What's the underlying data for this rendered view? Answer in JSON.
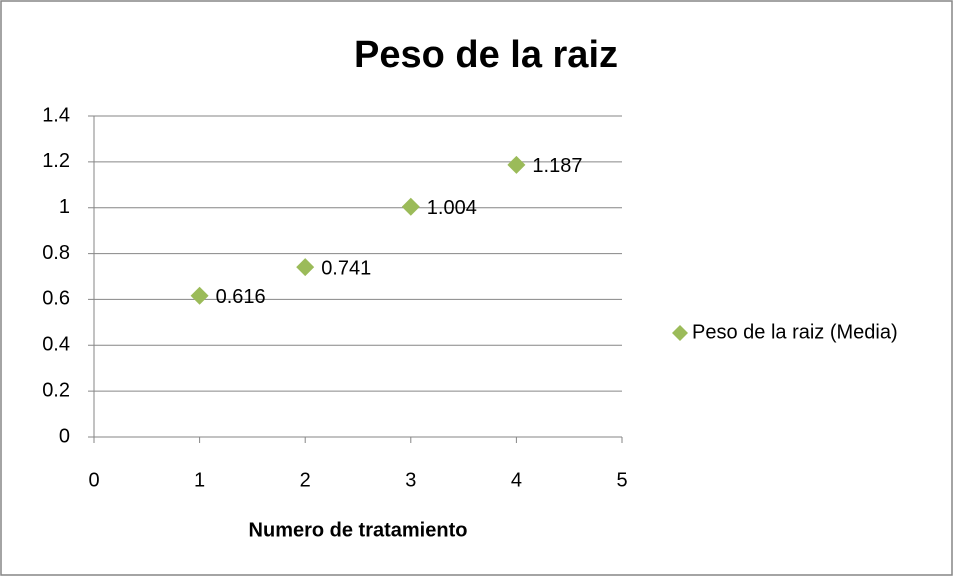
{
  "chart_data": {
    "type": "scatter",
    "title": "Peso de la raiz",
    "xlabel": "Numero de tratamiento",
    "series": [
      {
        "name": "Peso de la raiz (Media)",
        "color": "#9bbb59",
        "x": [
          1,
          2,
          3,
          4
        ],
        "values": [
          0.616,
          0.741,
          1.004,
          1.187
        ]
      }
    ],
    "xlim": [
      0,
      5
    ],
    "xticks": [
      0,
      1,
      2,
      3,
      4,
      5
    ],
    "ylim": [
      0,
      1.4
    ],
    "yticks": [
      0,
      0.2,
      0.4,
      0.6,
      0.8,
      1,
      1.2,
      1.4
    ],
    "grid": true,
    "legend": "right",
    "data_labels": true
  }
}
